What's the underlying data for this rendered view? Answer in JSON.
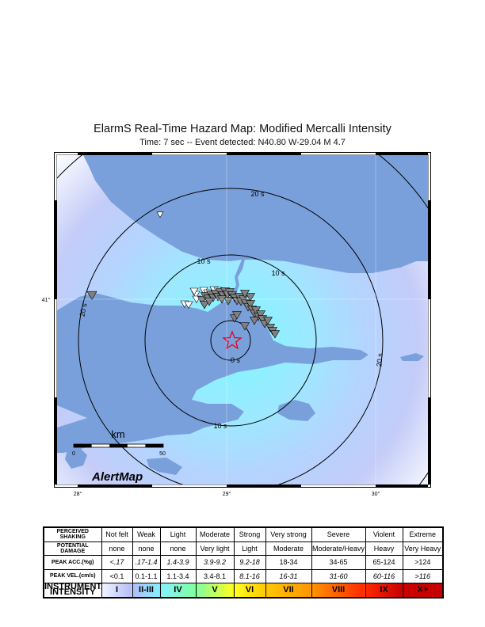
{
  "title": "ElarmS Real-Time Hazard Map: Modified Mercalli Intensity",
  "subtitle": "Time: 7 sec -- Event detected: N40.80 W-29.04 M 4.7",
  "map": {
    "contour_labels": [
      "0 s",
      "10 s",
      "10 s",
      "10 s",
      "20 s",
      "20 s",
      "20 s"
    ],
    "lon_labels": [
      "28°",
      "29°",
      "30°"
    ],
    "lat_labels": [
      "41°"
    ],
    "scale": {
      "unit": "km",
      "min": "0",
      "max": "50"
    },
    "logo": "AlertMap",
    "colors": {
      "water": "#7aa0dc",
      "epicenter": "#e8001c",
      "station_triggered": "#808080",
      "station_idle": "#ffffff"
    }
  },
  "legend": {
    "rows": [
      {
        "label": "PERCEIVED SHAKING",
        "cells": [
          "Not felt",
          "Weak",
          "Light",
          "Moderate",
          "Strong",
          "Very strong",
          "Severe",
          "Violent",
          "Extreme"
        ]
      },
      {
        "label": "POTENTIAL DAMAGE",
        "cells": [
          "none",
          "none",
          "none",
          "Very light",
          "Light",
          "Moderate",
          "Moderate/Heavy",
          "Heavy",
          "Very Heavy"
        ]
      },
      {
        "label": "PEAK ACC.(%g)",
        "cells": [
          "<.17",
          ".17-1.4",
          "1.4-3.9",
          "3.9-9.2",
          "9.2-18",
          "18-34",
          "34-65",
          "65-124",
          ">124"
        ]
      },
      {
        "label": "PEAK VEL.(cm/s)",
        "cells": [
          "<0.1",
          "0.1-1.1",
          "1.1-3.4",
          "3.4-8.1",
          "8.1-16",
          "16-31",
          "31-60",
          "60-116",
          ">116"
        ]
      },
      {
        "label": "INSTRUMENTAL INTENSITY",
        "cells": [
          "I",
          "II-III",
          "IV",
          "V",
          "VI",
          "VII",
          "VIII",
          "IX",
          "X+"
        ]
      }
    ],
    "intensity_colors": [
      "#f0f4ff",
      "#b4bcf8",
      "#84f0ff",
      "#80ffa0",
      "#ffff20",
      "#ffc800",
      "#ff9400",
      "#ff2800",
      "#c80000"
    ]
  }
}
